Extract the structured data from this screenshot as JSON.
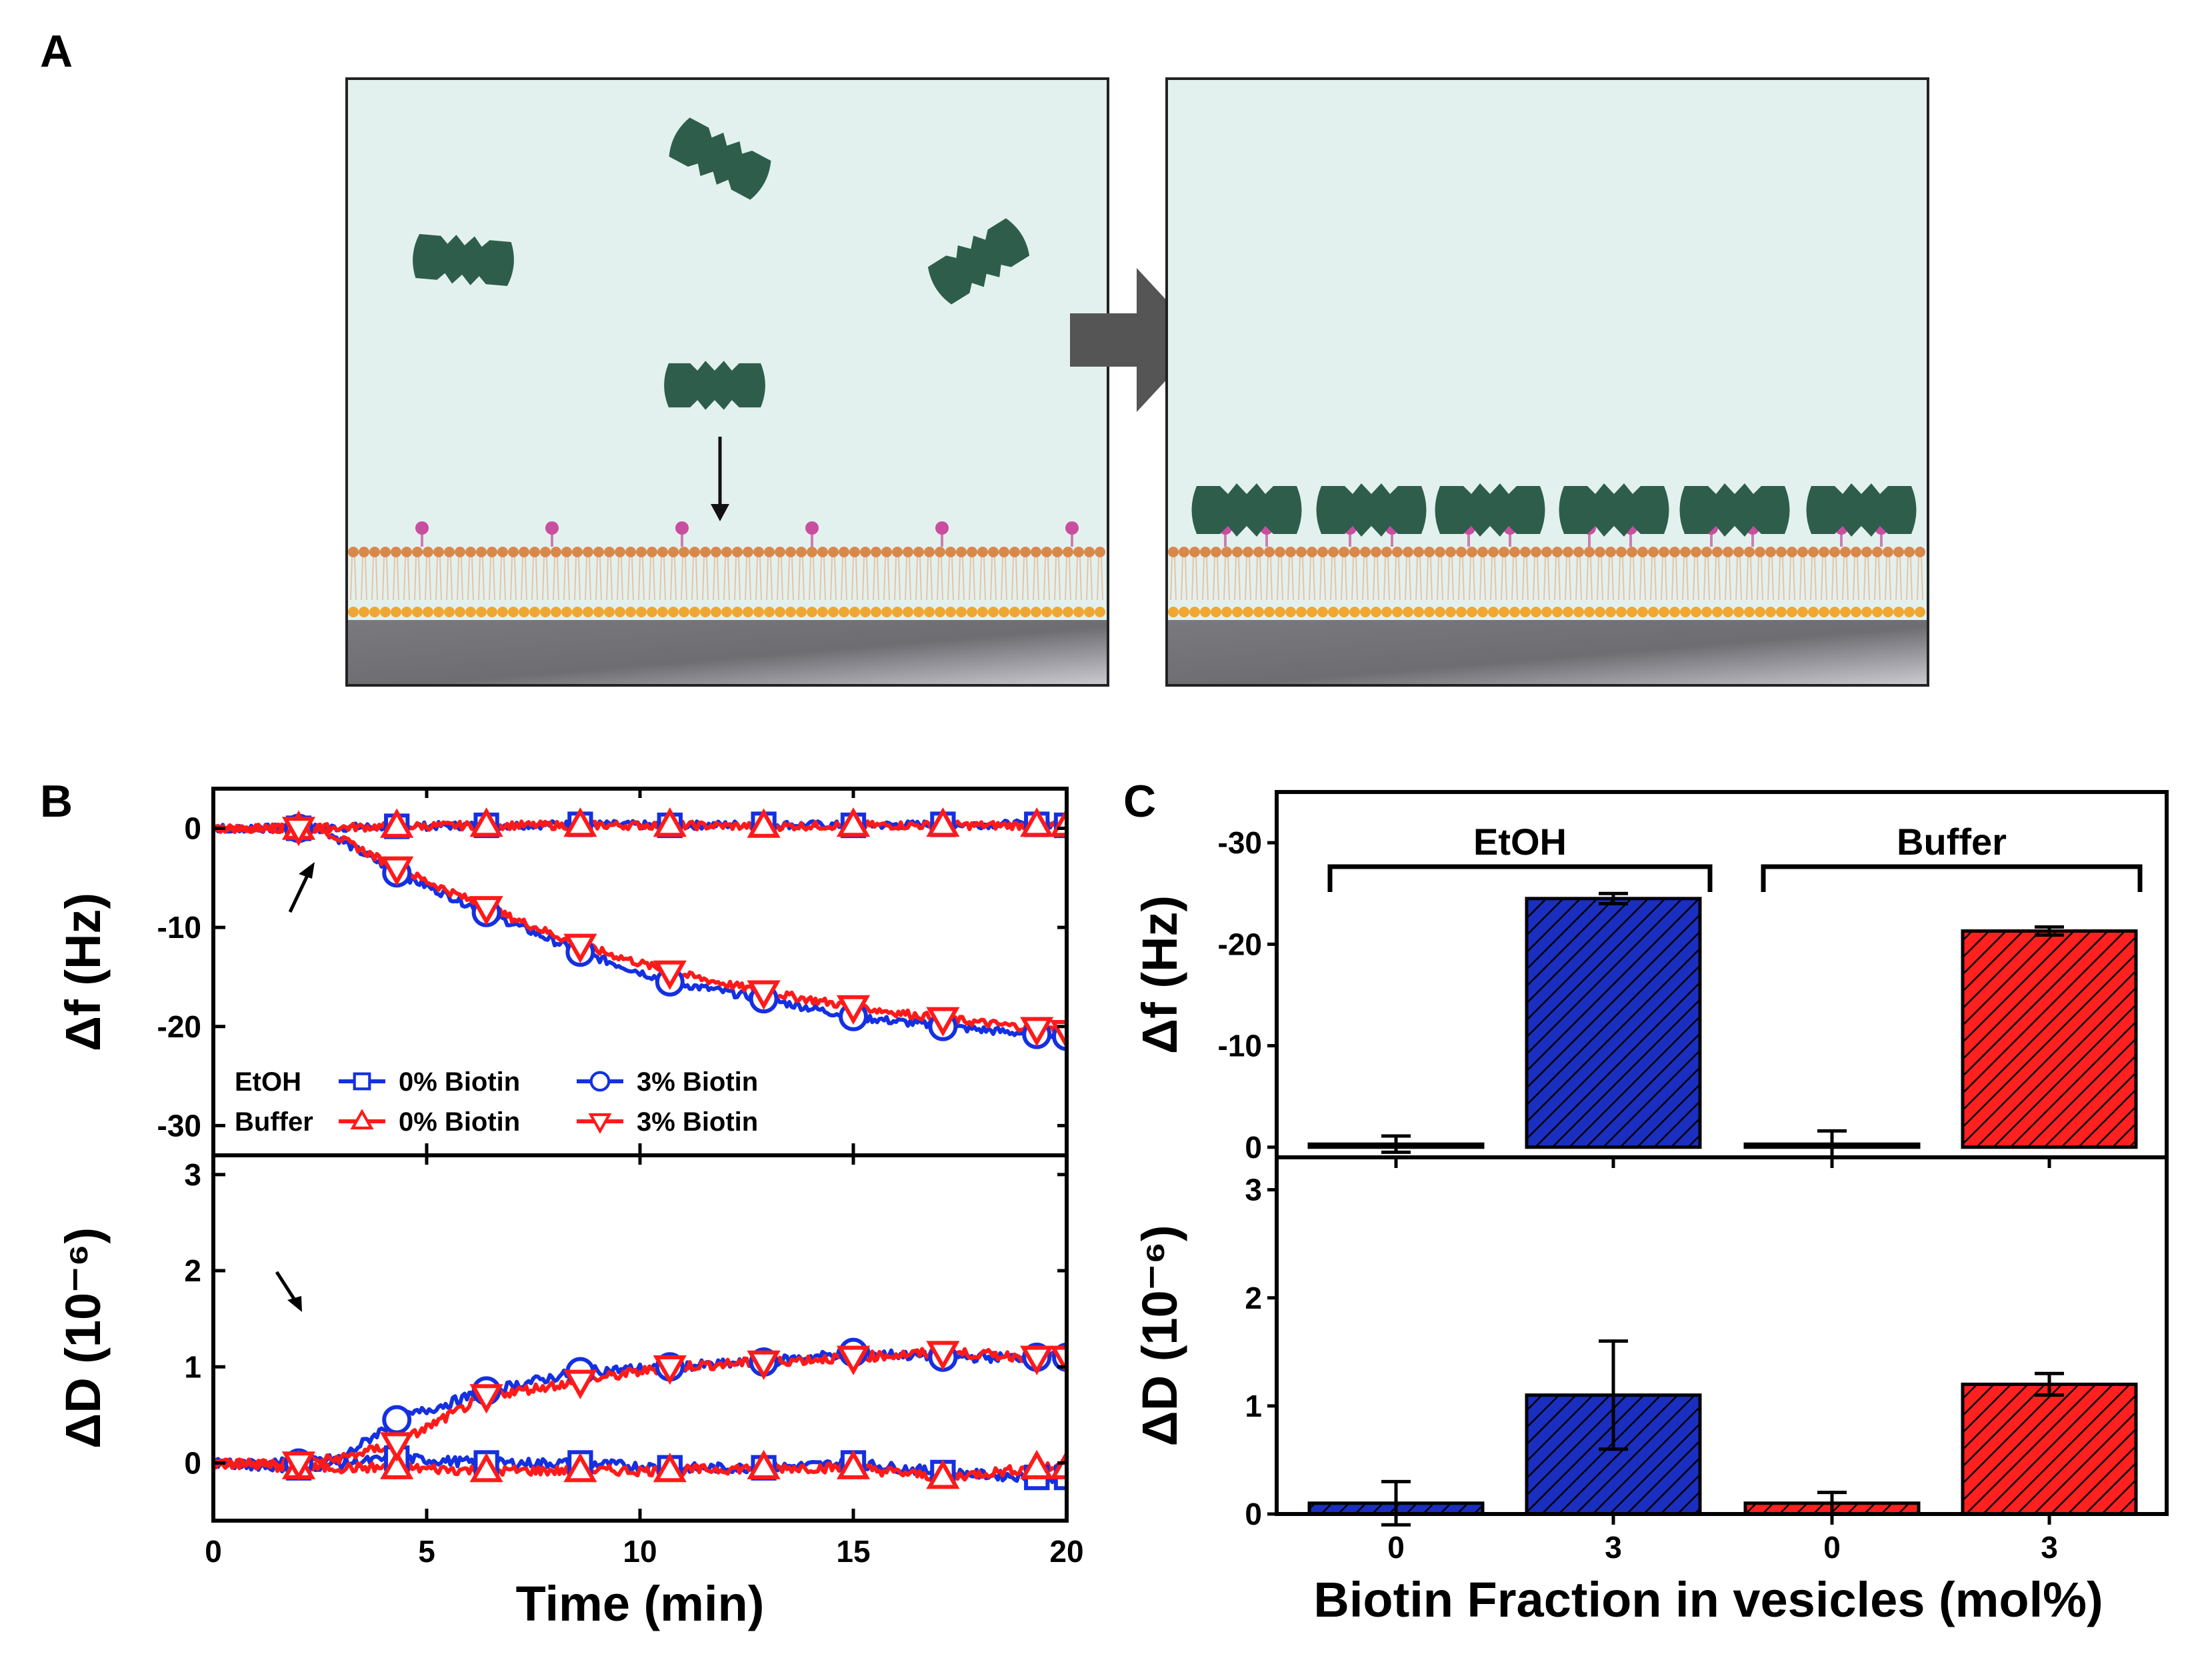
{
  "panel_labels": {
    "a": "A",
    "b": "B",
    "c": "C"
  },
  "colors": {
    "blue": "#1530e0",
    "red": "#ff1a1a",
    "bar_blue": "#1a2fbf",
    "bar_red": "#ff2020",
    "protein": "#2e5e4b",
    "solution": "#e3f1ee",
    "head_top": "#d9884c",
    "head_bottom": "#f0a632",
    "biotin": "#c94ea0"
  },
  "chart_data": [
    {
      "id": "B-top",
      "type": "line",
      "xlabel": "Time (min)",
      "ylabel": "Δf (Hz)",
      "xlim": [
        0,
        20
      ],
      "ylim": [
        -33,
        4
      ],
      "xticks": [
        0,
        5,
        10,
        15,
        20
      ],
      "yticks": [
        0,
        -10,
        -20,
        -30
      ],
      "legend": {
        "row_labels": [
          "EtOH",
          "Buffer"
        ],
        "entries": [
          {
            "label": "0% Biotin",
            "row": 0,
            "series": "etoh_0"
          },
          {
            "label": "3% Biotin",
            "row": 0,
            "series": "etoh_3"
          },
          {
            "label": "0% Biotin",
            "row": 1,
            "series": "buffer_0"
          },
          {
            "label": "3% Biotin",
            "row": 1,
            "series": "buffer_3"
          }
        ]
      },
      "series": [
        {
          "name": "etoh_0",
          "label": "EtOH 0% Biotin",
          "color": "#1530e0",
          "marker": "square",
          "x": [
            0,
            2,
            4.3,
            6.4,
            8.6,
            10.7,
            12.9,
            15,
            17.1,
            19.3,
            20
          ],
          "y": [
            0,
            0,
            0.2,
            0.3,
            0.4,
            0.3,
            0.4,
            0.3,
            0.4,
            0.4,
            0.3
          ]
        },
        {
          "name": "etoh_3",
          "label": "EtOH 3% Biotin",
          "color": "#1530e0",
          "marker": "circle",
          "x": [
            0,
            2,
            2.5,
            4.3,
            6.4,
            8.6,
            10.7,
            12.9,
            15,
            17.1,
            19.3,
            20
          ],
          "y": [
            0,
            0,
            0,
            -4.5,
            -8.5,
            -12.5,
            -15.5,
            -17.2,
            -19,
            -20,
            -20.8,
            -21
          ]
        },
        {
          "name": "buffer_0",
          "label": "Buffer 0% Biotin",
          "color": "#ff1a1a",
          "marker": "triangle-up",
          "x": [
            0,
            2,
            4.3,
            6.4,
            8.6,
            10.7,
            12.9,
            15,
            17.1,
            19.3,
            20
          ],
          "y": [
            0,
            0,
            0.2,
            0.3,
            0.3,
            0.3,
            0.2,
            0.3,
            0.3,
            0.3,
            0.3
          ]
        },
        {
          "name": "buffer_3",
          "label": "Buffer 3% Biotin",
          "color": "#ff1a1a",
          "marker": "triangle-down",
          "x": [
            0,
            2,
            2.5,
            4.3,
            6.4,
            8.6,
            10.7,
            12.9,
            15,
            17.1,
            19.3,
            20
          ],
          "y": [
            0,
            0,
            0,
            -4,
            -8,
            -11.8,
            -14.5,
            -16.5,
            -18,
            -19.2,
            -20.2,
            -20.5
          ]
        }
      ]
    },
    {
      "id": "B-bottom",
      "type": "line",
      "xlabel": "Time (min)",
      "ylabel": "ΔD (10⁻⁶)",
      "xlim": [
        0,
        20
      ],
      "ylim": [
        -0.6,
        3.2
      ],
      "xticks": [
        0,
        5,
        10,
        15,
        20
      ],
      "yticks": [
        0,
        1,
        2,
        3
      ],
      "series": [
        {
          "name": "etoh_0",
          "label": "EtOH 0% Biotin",
          "color": "#1530e0",
          "marker": "square",
          "x": [
            0,
            2,
            4.3,
            6.4,
            8.6,
            10.7,
            12.9,
            15,
            17.1,
            19.3,
            20
          ],
          "y": [
            0,
            -0.05,
            0.05,
            0,
            0,
            -0.05,
            -0.05,
            0,
            -0.1,
            -0.15,
            -0.15
          ]
        },
        {
          "name": "etoh_3",
          "label": "EtOH 3% Biotin",
          "color": "#1530e0",
          "marker": "circle",
          "x": [
            0,
            2,
            3,
            4.3,
            6.4,
            8.6,
            10.7,
            12.9,
            15,
            17.1,
            19.3,
            20
          ],
          "y": [
            0,
            0,
            0.05,
            0.45,
            0.75,
            0.95,
            1.0,
            1.05,
            1.15,
            1.1,
            1.1,
            1.1
          ]
        },
        {
          "name": "buffer_0",
          "label": "Buffer 0% Biotin",
          "color": "#ff1a1a",
          "marker": "triangle-up",
          "x": [
            0,
            2,
            4.3,
            6.4,
            8.6,
            10.7,
            12.9,
            15,
            17.1,
            19.3,
            20
          ],
          "y": [
            0,
            -0.05,
            -0.05,
            -0.08,
            -0.08,
            -0.08,
            -0.05,
            -0.05,
            -0.15,
            -0.05,
            -0.05
          ]
        },
        {
          "name": "buffer_3",
          "label": "Buffer 3% Biotin",
          "color": "#ff1a1a",
          "marker": "triangle-down",
          "x": [
            0,
            2,
            3,
            4.3,
            6.4,
            8.6,
            10.7,
            12.9,
            15,
            17.1,
            19.3,
            20
          ],
          "y": [
            0,
            0,
            0.05,
            0.2,
            0.7,
            0.85,
            1.0,
            1.05,
            1.1,
            1.15,
            1.1,
            1.1
          ]
        }
      ]
    },
    {
      "id": "C-top",
      "type": "bar",
      "xlabel": "Biotin Fraction in vesicles (mol%)",
      "ylabel": "Δf (Hz)",
      "categories": [
        "0",
        "3",
        "0",
        "3"
      ],
      "ylim": [
        1,
        -35
      ],
      "yticks": [
        0,
        -10,
        -20,
        -30
      ],
      "ytick_labels": [
        "0",
        "-10",
        "-20",
        "-30"
      ],
      "groups": [
        {
          "label": "EtOH",
          "categories": [
            0,
            1
          ]
        },
        {
          "label": "Buffer",
          "categories": [
            2,
            3
          ]
        }
      ],
      "values": [
        -0.3,
        -24.5,
        -0.3,
        -21.3
      ],
      "errors": [
        0.8,
        0.5,
        1.3,
        0.4
      ],
      "colors": [
        "#1a2fbf",
        "#1a2fbf",
        "#ff2020",
        "#ff2020"
      ]
    },
    {
      "id": "C-bottom",
      "type": "bar",
      "xlabel": "Biotin Fraction in vesicles (mol%)",
      "ylabel": "ΔD (10⁻⁶)",
      "categories": [
        "0",
        "3",
        "0",
        "3"
      ],
      "ylim": [
        0,
        3.3
      ],
      "yticks": [
        0,
        1,
        2,
        3
      ],
      "ytick_labels": [
        "0",
        "1",
        "2",
        "3"
      ],
      "values": [
        0.1,
        1.1,
        0.1,
        1.2
      ],
      "errors": [
        0.2,
        0.5,
        0.1,
        0.1
      ],
      "colors": [
        "#1a2fbf",
        "#1a2fbf",
        "#ff2020",
        "#ff2020"
      ]
    }
  ]
}
